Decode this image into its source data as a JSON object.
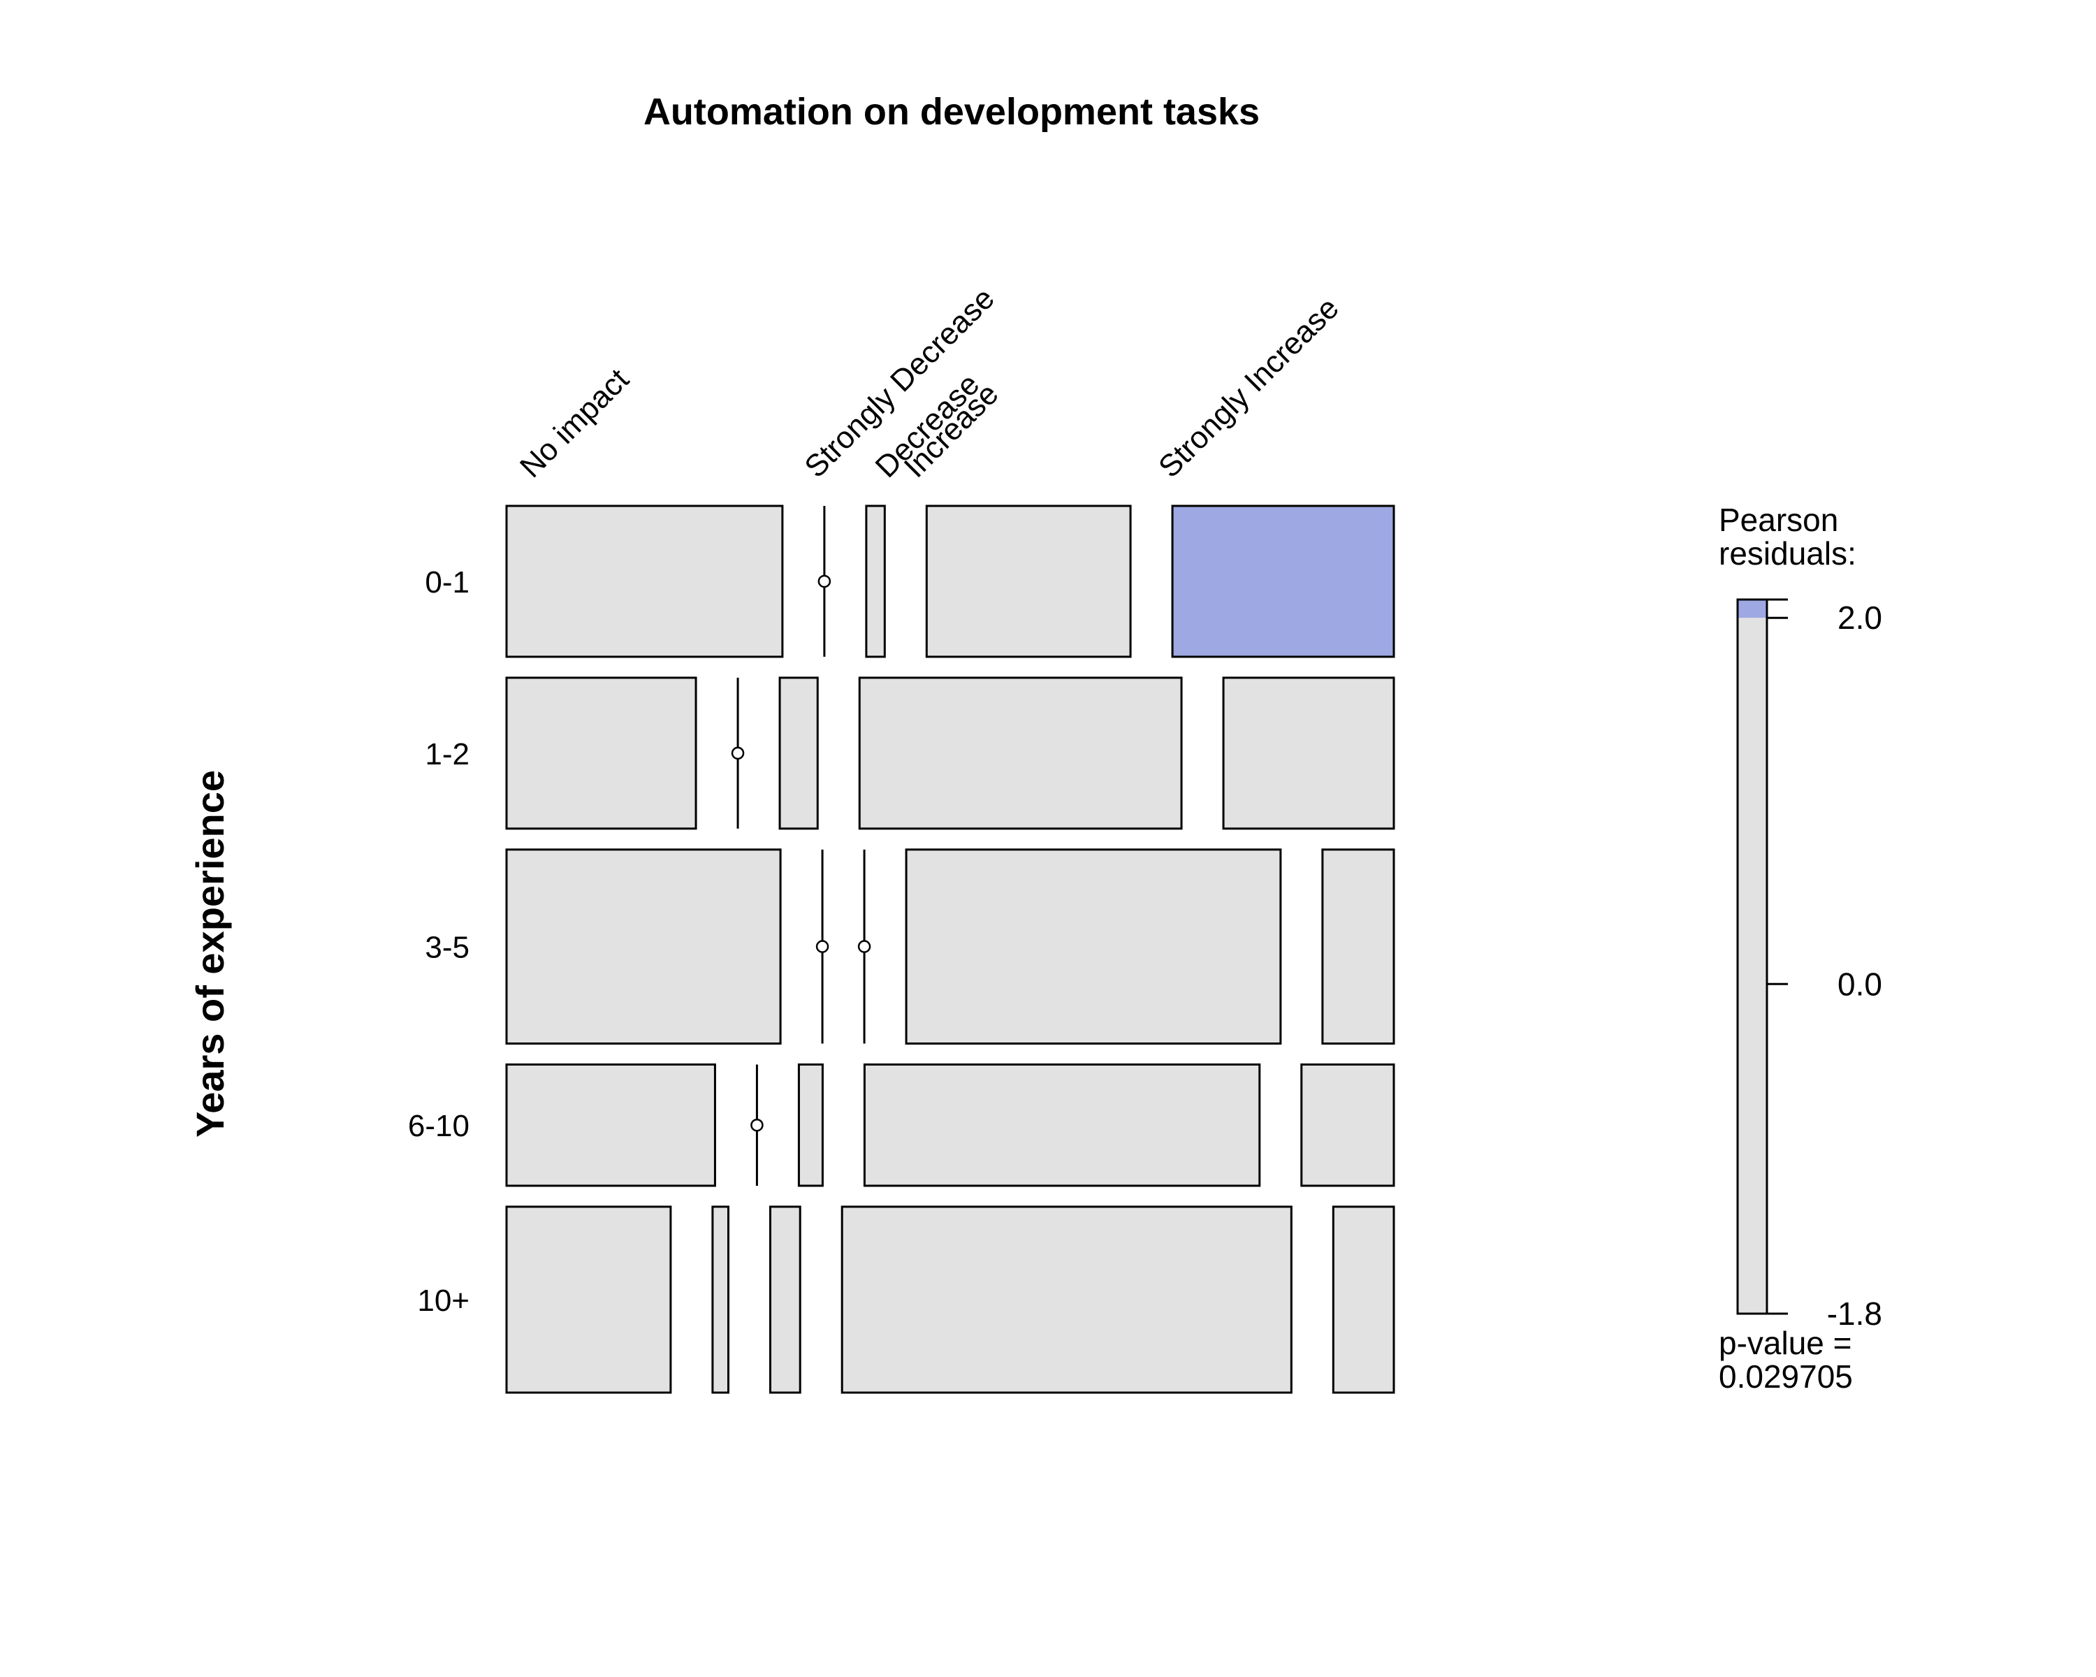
{
  "chart_data": {
    "type": "mosaic",
    "title": "Automation on development tasks",
    "row_variable": "Years of experience",
    "column_variable": "",
    "rows": [
      "0-1",
      "1-2",
      "3-5",
      "6-10",
      "10+"
    ],
    "columns": [
      "No impact",
      "Strongly Decrease",
      "Decrease",
      "Increase",
      "Strongly Increase"
    ],
    "row_proportions": [
      0.168,
      0.168,
      0.216,
      0.135,
      0.207
    ],
    "cell_proportions": [
      [
        0.314,
        0.0,
        0.021,
        0.232,
        0.252
      ],
      [
        0.21,
        0.0,
        0.042,
        0.357,
        0.189
      ],
      [
        0.311,
        0.0,
        0.0,
        0.425,
        0.081
      ],
      [
        0.237,
        0.0,
        0.027,
        0.449,
        0.105
      ],
      [
        0.187,
        0.018,
        0.034,
        0.512,
        0.069
      ]
    ],
    "shaded_cells": [
      {
        "row": "0-1",
        "column": "Strongly Increase",
        "residual_sign": "positive"
      }
    ],
    "legend": {
      "title_line1": "Pearson",
      "title_line2": "residuals:",
      "range": [
        -1.8,
        2.1
      ],
      "ticks": [
        {
          "value": 2.0,
          "label": "2.0"
        },
        {
          "value": 0.0,
          "label": "0.0"
        },
        {
          "value": -1.8,
          "label": "-1.8"
        }
      ],
      "shade_threshold": 2.0,
      "pvalue_line1": "p-value =",
      "pvalue_line2": "0.029705"
    },
    "colors": {
      "neutral_fill": "#e2e2e2",
      "positive_fill": "#9ea8e2",
      "stroke": "#000000",
      "background": "#ffffff"
    }
  }
}
